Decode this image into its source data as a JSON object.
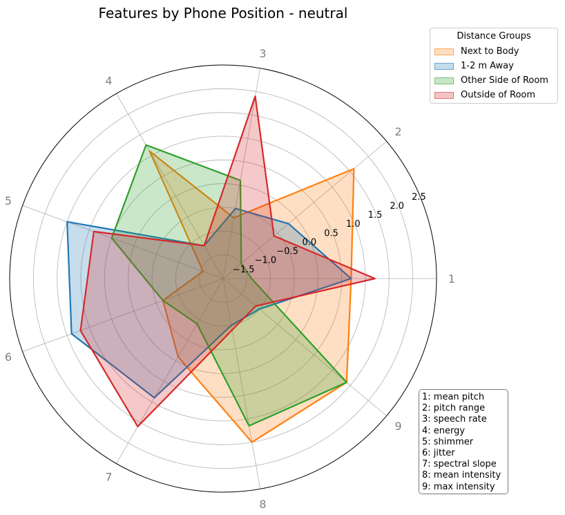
{
  "chart_data": {
    "type": "radar",
    "title": "Features by Phone Position - neutral",
    "axes": [
      "1",
      "2",
      "3",
      "4",
      "5",
      "6",
      "7",
      "8",
      "9"
    ],
    "radial_range": [
      -2.0,
      2.5
    ],
    "radial_ticks": [
      -1.5,
      -1.0,
      -0.5,
      0.0,
      0.5,
      1.0,
      1.5,
      2.0,
      2.5
    ],
    "radial_tick_labels": [
      "−1.5",
      "−1.0",
      "−0.5",
      "0.0",
      "0.5",
      "1.0",
      "1.5",
      "2.0",
      "2.5"
    ],
    "grid": true,
    "legend_title": "Distance Groups",
    "legend_position": "top-right",
    "series": [
      {
        "name": "Next to Body",
        "color": "#ff7f0e",
        "values": [
          0.7,
          1.6,
          -0.7,
          1.1,
          -1.55,
          -0.65,
          -0.1,
          1.5,
          1.4
        ]
      },
      {
        "name": "1-2 m Away",
        "color": "#1f77b4",
        "values": [
          0.7,
          -0.2,
          -0.5,
          -1.2,
          1.5,
          1.4,
          0.9,
          -1.0,
          -1.0
        ]
      },
      {
        "name": "Other Side of Room",
        "color": "#2ca02c",
        "values": [
          -1.4,
          -1.5,
          0.1,
          1.25,
          0.5,
          -0.65,
          -0.9,
          1.15,
          1.4
        ]
      },
      {
        "name": "Outside of Room",
        "color": "#d62728",
        "values": [
          1.2,
          -0.6,
          1.9,
          -1.2,
          0.9,
          1.2,
          1.6,
          -0.9,
          -1.1
        ]
      }
    ],
    "key_title": "",
    "key": [
      "1: mean pitch",
      "2: pitch range",
      "3: speech rate",
      "4: energy",
      "5: shimmer",
      "6: jitter",
      "7: spectral slope",
      "8: mean intensity",
      "9: max intensity"
    ]
  }
}
